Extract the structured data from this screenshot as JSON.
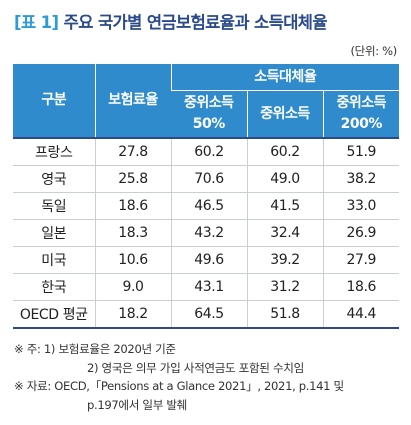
{
  "title": {
    "tag": "[표 1]",
    "text": "주요 국가별 연금보험료율과 소득대체율"
  },
  "unit": "(단위: %)",
  "table": {
    "header": {
      "col0": "구분",
      "col1": "보험료율",
      "group": "소득대체율",
      "sub1": "중위소득\n50%",
      "sub2": "중위소득",
      "sub3": "중위소득\n200%"
    },
    "rows": [
      {
        "country": "프랑스",
        "rate": "27.8",
        "v50": "60.2",
        "v100": "60.2",
        "v200": "51.9"
      },
      {
        "country": "영국",
        "rate": "25.8",
        "v50": "70.6",
        "v100": "49.0",
        "v200": "38.2"
      },
      {
        "country": "독일",
        "rate": "18.6",
        "v50": "46.5",
        "v100": "41.5",
        "v200": "33.0"
      },
      {
        "country": "일본",
        "rate": "18.3",
        "v50": "43.2",
        "v100": "32.4",
        "v200": "26.9"
      },
      {
        "country": "미국",
        "rate": "10.6",
        "v50": "49.6",
        "v100": "39.2",
        "v200": "27.9"
      },
      {
        "country": "한국",
        "rate": "9.0",
        "v50": "43.1",
        "v100": "31.2",
        "v200": "18.6"
      },
      {
        "country": "OECD 평균",
        "rate": "18.2",
        "v50": "64.5",
        "v100": "51.8",
        "v200": "44.4"
      }
    ]
  },
  "notes": {
    "note1": "※ 주:  1) 보험료율은 2020년 기준",
    "note2": "2) 영국은 의무 가입 사적연금도 포함된 수치임",
    "source1": "※ 자료:  OECD,「Pensions at a Glance 2021」, 2021, p.141 및",
    "source2": "p.197에서 일부 발췌"
  },
  "colors": {
    "title": "#2b4a8b",
    "tag": "#2e9bd6",
    "header_bg": "#2f8bcb"
  }
}
